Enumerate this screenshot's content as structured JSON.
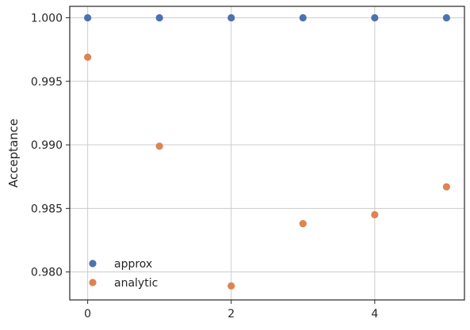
{
  "chart_data": {
    "type": "scatter",
    "title": "",
    "xlabel": "",
    "ylabel": "Acceptance",
    "xlim": [
      -0.25,
      5.25
    ],
    "ylim": [
      0.9778,
      1.0009
    ],
    "xticks": [
      0,
      2,
      4
    ],
    "yticks": [
      0.98,
      0.985,
      0.99,
      0.995,
      1.0
    ],
    "ytick_labels": [
      "0.980",
      "0.985",
      "0.990",
      "0.995",
      "1.000"
    ],
    "grid": true,
    "legend_position": "lower-left",
    "series": [
      {
        "name": "approx",
        "color": "#4c72b0",
        "x": [
          0,
          1,
          2,
          3,
          4,
          5
        ],
        "y": [
          1.0,
          1.0,
          1.0,
          1.0,
          1.0,
          1.0
        ]
      },
      {
        "name": "analytic",
        "color": "#dd8452",
        "x": [
          0,
          1,
          2,
          3,
          4,
          5
        ],
        "y": [
          0.9969,
          0.9899,
          0.9789,
          0.9838,
          0.9845,
          0.9867
        ]
      }
    ]
  }
}
